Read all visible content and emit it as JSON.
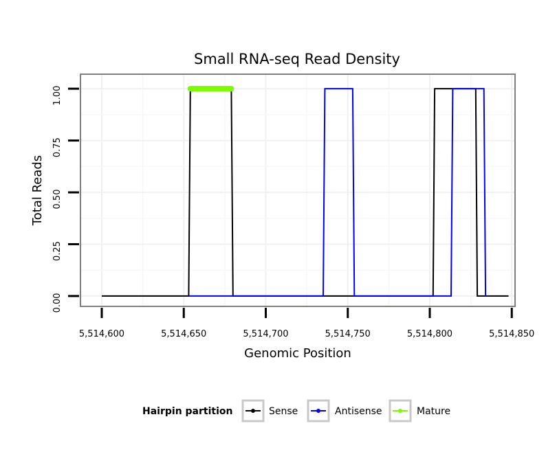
{
  "chart_data": {
    "type": "line",
    "title": "Small RNA-seq Read Density",
    "xlabel": "Genomic Position",
    "ylabel": "Total Reads",
    "xlim": [
      5514587,
      5514852
    ],
    "ylim": [
      -0.05,
      1.07
    ],
    "x_ticks": [
      5514600,
      5514650,
      5514700,
      5514750,
      5514800,
      5514850
    ],
    "x_tick_labels": [
      "5,514,600",
      "5,514,650",
      "5,514,700",
      "5,514,750",
      "5,514,800",
      "5,514,850"
    ],
    "y_ticks": [
      0,
      0.25,
      0.5,
      0.75,
      1.0
    ],
    "y_tick_labels": [
      "0.00",
      "0.25",
      "0.50",
      "0.75",
      "1.00"
    ],
    "grid": true,
    "legend": {
      "title": "Hairpin partition",
      "position": "bottom",
      "entries": [
        {
          "label": "Sense",
          "color": "#000000"
        },
        {
          "label": "Antisense",
          "color": "#0000ff"
        },
        {
          "label": "Mature",
          "color": "#7cfc00"
        }
      ]
    },
    "series": [
      {
        "name": "Sense",
        "color": "#000000",
        "x": [
          5514600,
          5514653,
          5514654,
          5514679,
          5514680,
          5514802,
          5514803,
          5514828,
          5514829,
          5514848
        ],
        "y": [
          0,
          0,
          1,
          1,
          0,
          0,
          1,
          1,
          0,
          0
        ]
      },
      {
        "name": "Antisense",
        "color": "#0000ff",
        "x": [
          5514653,
          5514735,
          5514736,
          5514753,
          5514754,
          5514813,
          5514814,
          5514833,
          5514834
        ],
        "y": [
          0,
          0,
          1,
          1,
          0,
          0,
          1,
          1,
          0
        ]
      },
      {
        "name": "Mature",
        "color": "#7cfc00",
        "x": [
          5514654,
          5514679
        ],
        "y": [
          1,
          1
        ]
      }
    ]
  }
}
